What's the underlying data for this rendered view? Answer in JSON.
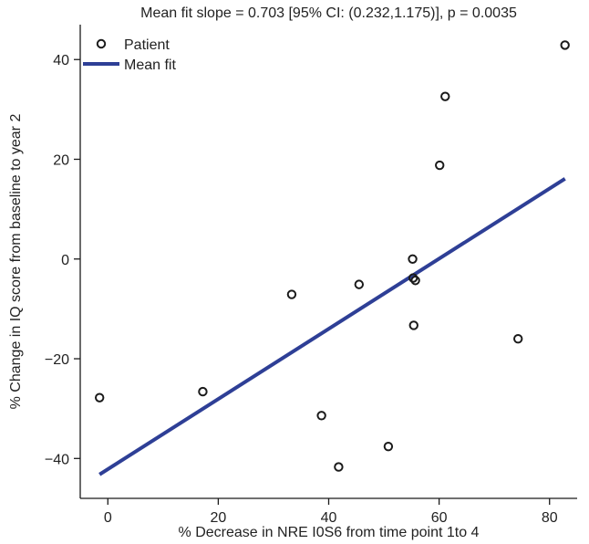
{
  "chart_data": {
    "type": "scatter",
    "title": "Mean fit slope = 0.703 [95% CI: (0.232,1.175)], p = 0.0035",
    "xlabel": "% Decrease in NRE I0S6 from time point 1to 4",
    "ylabel": "% Change in IQ score from baseline to year 2",
    "xlim": [
      -5,
      85
    ],
    "ylim": [
      -48,
      47
    ],
    "x_ticks": [
      0,
      20,
      40,
      60,
      80
    ],
    "y_ticks": [
      -40,
      -20,
      0,
      20,
      40
    ],
    "x_tick_labels": [
      "0",
      "20",
      "40",
      "60",
      "80"
    ],
    "y_tick_labels": [
      "−40",
      "−20",
      "0",
      "20",
      "40"
    ],
    "grid": false,
    "legend_position": "top-left",
    "series": [
      {
        "name": "Patient",
        "type": "scatter",
        "marker": "open-circle",
        "color": "#1a1a1a",
        "x": [
          -1.5,
          17.2,
          33.3,
          38.7,
          41.8,
          45.5,
          50.8,
          55.2,
          55.3,
          55.4,
          55.7,
          60.1,
          61.1,
          74.3,
          82.8
        ],
        "y": [
          -27.8,
          -26.6,
          -7.1,
          -31.4,
          -41.7,
          -5.1,
          -37.6,
          0.0,
          -3.8,
          -13.3,
          -4.3,
          18.8,
          32.6,
          -16.0,
          42.9
        ]
      },
      {
        "name": "Mean fit",
        "type": "line",
        "color": "#2e3f96",
        "x": [
          -1.5,
          82.8
        ],
        "y": [
          -43.2,
          16.1
        ]
      }
    ]
  }
}
